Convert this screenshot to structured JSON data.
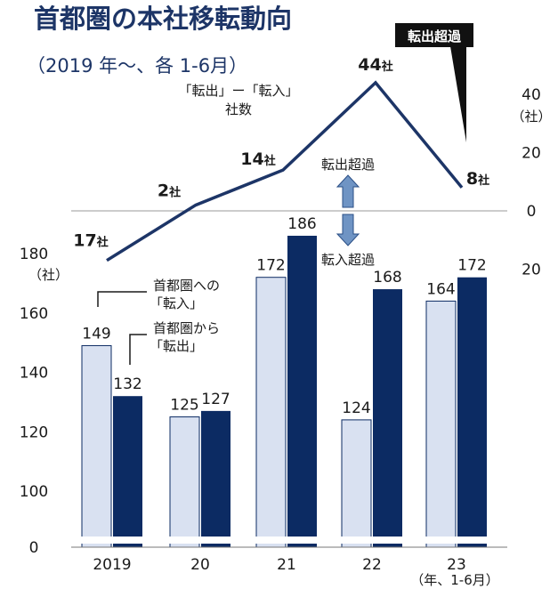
{
  "title": "首都圏の本社移転動向",
  "subtitle": "（2019 年〜、各 1-6月）",
  "colors": {
    "title": "#1d3567",
    "inbound_bar": "#d9e1f1",
    "inbound_stroke": "#0c2b63",
    "outbound_bar": "#0c2b63",
    "line": "#1d3567",
    "axis_text": "#1a1a1a",
    "arrow": "#6f94c4",
    "callout_bg": "#111111"
  },
  "chart_data": {
    "type": "bar",
    "categories": [
      "2019",
      "20",
      "21",
      "22",
      "23"
    ],
    "x_unit_note": "（年、1-6月）",
    "left_axis": {
      "unit": "（社）",
      "ticks": [
        "180",
        "160",
        "140",
        "120",
        "100",
        "0"
      ],
      "tick_values": [
        180,
        160,
        140,
        120,
        100,
        0
      ],
      "axis_break": true
    },
    "series": [
      {
        "name": "首都圏への「転入」",
        "values": [
          149,
          125,
          172,
          124,
          164
        ],
        "labels": [
          "149",
          "125",
          "172",
          "124",
          "164"
        ]
      },
      {
        "name": "首都圏から「転出」",
        "values": [
          132,
          127,
          186,
          168,
          172
        ],
        "labels": [
          "132",
          "127",
          "186",
          "168",
          "172"
        ]
      }
    ],
    "legend": {
      "inbound_line1": "首都圏への",
      "inbound_line2": "「転入」",
      "outbound_line1": "首都圏から",
      "outbound_line2": "「転出」"
    },
    "line_series": {
      "label_line1": "「転出」ー「転入」",
      "label_line2": "社数",
      "values": [
        -17,
        2,
        14,
        44,
        8
      ],
      "labels": [
        "17社",
        "2社",
        "14社",
        "44社",
        "8社"
      ],
      "right_axis": {
        "unit": "（社）",
        "ticks": [
          "40",
          "20",
          "0",
          "20"
        ],
        "tick_values": [
          40,
          20,
          0,
          -20
        ]
      },
      "up_label": "転出超過",
      "down_label": "転入超過",
      "callout": "転出超過"
    }
  }
}
